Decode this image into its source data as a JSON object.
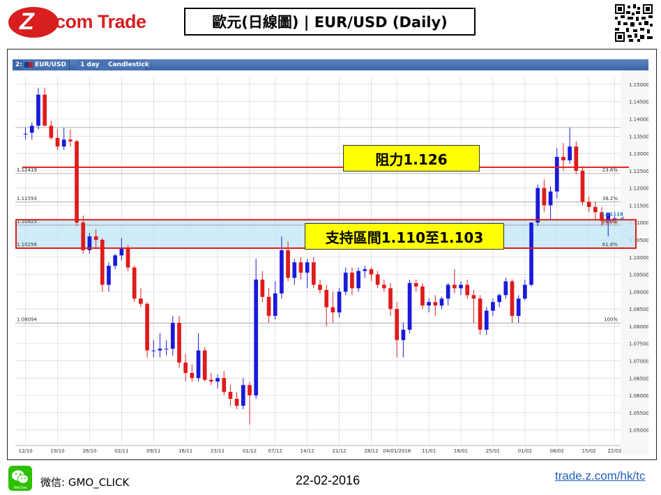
{
  "header": {
    "brand": "Z.com Trade",
    "brand_z": "Z",
    "brand_rest": ".com Trade",
    "title": "歐元(日線圖) | EUR/USD  (Daily)"
  },
  "toolbar": {
    "prefix": "2:",
    "symbol": "EUR/USD",
    "interval": "1 day",
    "chart_type": "Candlestick"
  },
  "annotations": {
    "resistance_label": "阻力1.126",
    "support_label": "支持區間1.110至1.103"
  },
  "footer": {
    "wechat_label": "微信: GMO_CLICK",
    "wechat_icon_caption": "WeChat",
    "date": "22-02-2016",
    "site": "trade.z.com/hk/tc"
  },
  "chart_data": {
    "type": "candlestick",
    "symbol": "EUR/USD",
    "interval": "1 day",
    "ylim": [
      1.0455,
      1.152
    ],
    "y_ticks": [
      "1.15000",
      "1.14500",
      "1.14000",
      "1.13500",
      "1.13000",
      "1.12500",
      "1.12000",
      "1.11500",
      "1.11000",
      "1.10500",
      "1.10000",
      "1.09500",
      "1.09000",
      "1.08500",
      "1.08000",
      "1.07500",
      "1.07000",
      "1.06500",
      "1.06000",
      "1.05500",
      "1.05000"
    ],
    "x_ticks": [
      "12/10",
      "19/10",
      "26/10",
      "02/11",
      "09/11",
      "16/11",
      "23/11",
      "01/12",
      "07/12",
      "14/12",
      "21/12",
      "28/12",
      "04/01/2016",
      "11/01",
      "18/01",
      "25/01",
      "01/02",
      "08/02",
      "15/02",
      "22/02"
    ],
    "current_price": "1.11118",
    "current_change": "1.50%",
    "fibonacci": [
      {
        "level": "23.6%",
        "price": 1.12419,
        "label": "1.12419"
      },
      {
        "level": "38.2%",
        "price": 1.11593,
        "label": "1.11593"
      },
      {
        "level": "50.0%",
        "price": 1.10925,
        "label": "1.10925"
      },
      {
        "level": "61.8%",
        "price": 1.10256,
        "label": "1.10256"
      },
      {
        "level": "100%",
        "price": 1.08094,
        "label": "1.08094"
      },
      {
        "level": "",
        "price": 1.1375,
        "label": ""
      }
    ],
    "resistance": 1.126,
    "support_zone": [
      1.103,
      1.11
    ],
    "candles": [
      {
        "o": 1.1355,
        "h": 1.1375,
        "l": 1.134,
        "c": 1.1357
      },
      {
        "o": 1.136,
        "h": 1.139,
        "l": 1.134,
        "c": 1.138
      },
      {
        "o": 1.138,
        "h": 1.149,
        "l": 1.137,
        "c": 1.147
      },
      {
        "o": 1.147,
        "h": 1.149,
        "l": 1.138,
        "c": 1.138
      },
      {
        "o": 1.138,
        "h": 1.1395,
        "l": 1.134,
        "c": 1.1345
      },
      {
        "o": 1.1345,
        "h": 1.137,
        "l": 1.131,
        "c": 1.132
      },
      {
        "o": 1.132,
        "h": 1.1375,
        "l": 1.131,
        "c": 1.134
      },
      {
        "o": 1.134,
        "h": 1.137,
        "l": 1.132,
        "c": 1.1335
      },
      {
        "o": 1.1335,
        "h": 1.134,
        "l": 1.109,
        "c": 1.11
      },
      {
        "o": 1.11,
        "h": 1.112,
        "l": 1.101,
        "c": 1.102
      },
      {
        "o": 1.102,
        "h": 1.107,
        "l": 1.101,
        "c": 1.106
      },
      {
        "o": 1.106,
        "h": 1.108,
        "l": 1.1025,
        "c": 1.105
      },
      {
        "o": 1.105,
        "h": 1.1055,
        "l": 1.09,
        "c": 1.092
      },
      {
        "o": 1.092,
        "h": 1.0985,
        "l": 1.09,
        "c": 1.0975
      },
      {
        "o": 1.0975,
        "h": 1.101,
        "l": 1.0965,
        "c": 1.1005
      },
      {
        "o": 1.1005,
        "h": 1.1055,
        "l": 1.099,
        "c": 1.1025
      },
      {
        "o": 1.1025,
        "h": 1.1035,
        "l": 1.096,
        "c": 1.097
      },
      {
        "o": 1.097,
        "h": 1.0975,
        "l": 1.087,
        "c": 1.088
      },
      {
        "o": 1.088,
        "h": 1.091,
        "l": 1.0855,
        "c": 1.0865
      },
      {
        "o": 1.0865,
        "h": 1.087,
        "l": 1.071,
        "c": 1.073
      },
      {
        "o": 1.073,
        "h": 1.076,
        "l": 1.071,
        "c": 1.073
      },
      {
        "o": 1.073,
        "h": 1.078,
        "l": 1.071,
        "c": 1.0735
      },
      {
        "o": 1.0735,
        "h": 1.076,
        "l": 1.0715,
        "c": 1.0735
      },
      {
        "o": 1.0735,
        "h": 1.083,
        "l": 1.0715,
        "c": 1.081
      },
      {
        "o": 1.081,
        "h": 1.083,
        "l": 1.068,
        "c": 1.0695
      },
      {
        "o": 1.0695,
        "h": 1.072,
        "l": 1.064,
        "c": 1.0665
      },
      {
        "o": 1.0665,
        "h": 1.069,
        "l": 1.064,
        "c": 1.065
      },
      {
        "o": 1.065,
        "h": 1.078,
        "l": 1.064,
        "c": 1.073
      },
      {
        "o": 1.073,
        "h": 1.074,
        "l": 1.064,
        "c": 1.0645
      },
      {
        "o": 1.0645,
        "h": 1.0665,
        "l": 1.063,
        "c": 1.064
      },
      {
        "o": 1.064,
        "h": 1.066,
        "l": 1.062,
        "c": 1.065
      },
      {
        "o": 1.065,
        "h": 1.067,
        "l": 1.06,
        "c": 1.061
      },
      {
        "o": 1.061,
        "h": 1.063,
        "l": 1.057,
        "c": 1.059
      },
      {
        "o": 1.059,
        "h": 1.061,
        "l": 1.056,
        "c": 1.057
      },
      {
        "o": 1.057,
        "h": 1.065,
        "l": 1.056,
        "c": 1.063
      },
      {
        "o": 1.063,
        "h": 1.064,
        "l": 1.0515,
        "c": 1.06
      },
      {
        "o": 1.06,
        "h": 1.0995,
        "l": 1.059,
        "c": 1.0935
      },
      {
        "o": 1.0935,
        "h": 1.096,
        "l": 1.087,
        "c": 1.0885
      },
      {
        "o": 1.0885,
        "h": 1.091,
        "l": 1.081,
        "c": 1.083
      },
      {
        "o": 1.083,
        "h": 1.093,
        "l": 1.082,
        "c": 1.0895
      },
      {
        "o": 1.0895,
        "h": 1.106,
        "l": 1.088,
        "c": 1.102
      },
      {
        "o": 1.102,
        "h": 1.1045,
        "l": 1.093,
        "c": 1.094
      },
      {
        "o": 1.094,
        "h": 1.0995,
        "l": 1.092,
        "c": 1.0985
      },
      {
        "o": 1.0985,
        "h": 1.1,
        "l": 1.0935,
        "c": 1.0955
      },
      {
        "o": 1.0955,
        "h": 1.0995,
        "l": 1.091,
        "c": 1.0985
      },
      {
        "o": 1.0985,
        "h": 1.1,
        "l": 1.091,
        "c": 1.092
      },
      {
        "o": 1.092,
        "h": 1.0935,
        "l": 1.0895,
        "c": 1.0905
      },
      {
        "o": 1.0905,
        "h": 1.092,
        "l": 1.08,
        "c": 1.0855
      },
      {
        "o": 1.0855,
        "h": 1.09,
        "l": 1.081,
        "c": 1.084
      },
      {
        "o": 1.084,
        "h": 1.091,
        "l": 1.0825,
        "c": 1.09
      },
      {
        "o": 1.09,
        "h": 1.097,
        "l": 1.089,
        "c": 1.0955
      },
      {
        "o": 1.0955,
        "h": 1.097,
        "l": 1.089,
        "c": 1.091
      },
      {
        "o": 1.091,
        "h": 1.097,
        "l": 1.09,
        "c": 1.096
      },
      {
        "o": 1.096,
        "h": 1.0975,
        "l": 1.094,
        "c": 1.0965
      },
      {
        "o": 1.0965,
        "h": 1.097,
        "l": 1.093,
        "c": 1.095
      },
      {
        "o": 1.095,
        "h": 1.096,
        "l": 1.091,
        "c": 1.092
      },
      {
        "o": 1.092,
        "h": 1.0935,
        "l": 1.09,
        "c": 1.091
      },
      {
        "o": 1.091,
        "h": 1.0925,
        "l": 1.083,
        "c": 1.085
      },
      {
        "o": 1.085,
        "h": 1.087,
        "l": 1.071,
        "c": 1.076
      },
      {
        "o": 1.076,
        "h": 1.081,
        "l": 1.071,
        "c": 1.079
      },
      {
        "o": 1.079,
        "h": 1.0935,
        "l": 1.078,
        "c": 1.0925
      },
      {
        "o": 1.0925,
        "h": 1.0935,
        "l": 1.09,
        "c": 1.0915
      },
      {
        "o": 1.0915,
        "h": 1.0925,
        "l": 1.085,
        "c": 1.086
      },
      {
        "o": 1.086,
        "h": 1.088,
        "l": 1.084,
        "c": 1.087
      },
      {
        "o": 1.087,
        "h": 1.089,
        "l": 1.083,
        "c": 1.086
      },
      {
        "o": 1.086,
        "h": 1.0885,
        "l": 1.085,
        "c": 1.088
      },
      {
        "o": 1.088,
        "h": 1.0925,
        "l": 1.086,
        "c": 1.092
      },
      {
        "o": 1.092,
        "h": 1.0965,
        "l": 1.0895,
        "c": 1.091
      },
      {
        "o": 1.091,
        "h": 1.093,
        "l": 1.089,
        "c": 1.092
      },
      {
        "o": 1.092,
        "h": 1.0935,
        "l": 1.088,
        "c": 1.089
      },
      {
        "o": 1.089,
        "h": 1.0905,
        "l": 1.081,
        "c": 1.088
      },
      {
        "o": 1.088,
        "h": 1.089,
        "l": 1.0775,
        "c": 1.079
      },
      {
        "o": 1.079,
        "h": 1.0855,
        "l": 1.0775,
        "c": 1.0845
      },
      {
        "o": 1.0845,
        "h": 1.088,
        "l": 1.083,
        "c": 1.087
      },
      {
        "o": 1.087,
        "h": 1.0895,
        "l": 1.0855,
        "c": 1.089
      },
      {
        "o": 1.089,
        "h": 1.094,
        "l": 1.088,
        "c": 1.093
      },
      {
        "o": 1.093,
        "h": 1.0935,
        "l": 1.081,
        "c": 1.083
      },
      {
        "o": 1.083,
        "h": 1.089,
        "l": 1.081,
        "c": 1.088
      },
      {
        "o": 1.088,
        "h": 1.0935,
        "l": 1.0875,
        "c": 1.092
      },
      {
        "o": 1.092,
        "h": 1.1095,
        "l": 1.0915,
        "c": 1.11
      },
      {
        "o": 1.11,
        "h": 1.121,
        "l": 1.109,
        "c": 1.12
      },
      {
        "o": 1.12,
        "h": 1.1225,
        "l": 1.113,
        "c": 1.115
      },
      {
        "o": 1.115,
        "h": 1.1205,
        "l": 1.111,
        "c": 1.119
      },
      {
        "o": 1.119,
        "h": 1.1315,
        "l": 1.117,
        "c": 1.129
      },
      {
        "o": 1.129,
        "h": 1.133,
        "l": 1.125,
        "c": 1.128
      },
      {
        "o": 1.128,
        "h": 1.1375,
        "l": 1.127,
        "c": 1.132
      },
      {
        "o": 1.132,
        "h": 1.1335,
        "l": 1.124,
        "c": 1.125
      },
      {
        "o": 1.125,
        "h": 1.126,
        "l": 1.115,
        "c": 1.116
      },
      {
        "o": 1.116,
        "h": 1.1175,
        "l": 1.113,
        "c": 1.1145
      },
      {
        "o": 1.1145,
        "h": 1.116,
        "l": 1.111,
        "c": 1.113
      },
      {
        "o": 1.113,
        "h": 1.1145,
        "l": 1.109,
        "c": 1.1105
      },
      {
        "o": 1.1105,
        "h": 1.113,
        "l": 1.106,
        "c": 1.1128
      },
      {
        "o": 1.1112,
        "h": 1.1118,
        "l": 1.1108,
        "c": 1.1112
      }
    ]
  },
  "colors": {
    "up": "#1a1adb",
    "down": "#e01b1b",
    "resistance_line": "#e01b1b",
    "support_fill": "#bfe6f5",
    "callout_bg": "#ffff00",
    "brand_red": "#d81e1e",
    "tab_blue": "#4a73b5",
    "grid": "#d0d0d0"
  }
}
